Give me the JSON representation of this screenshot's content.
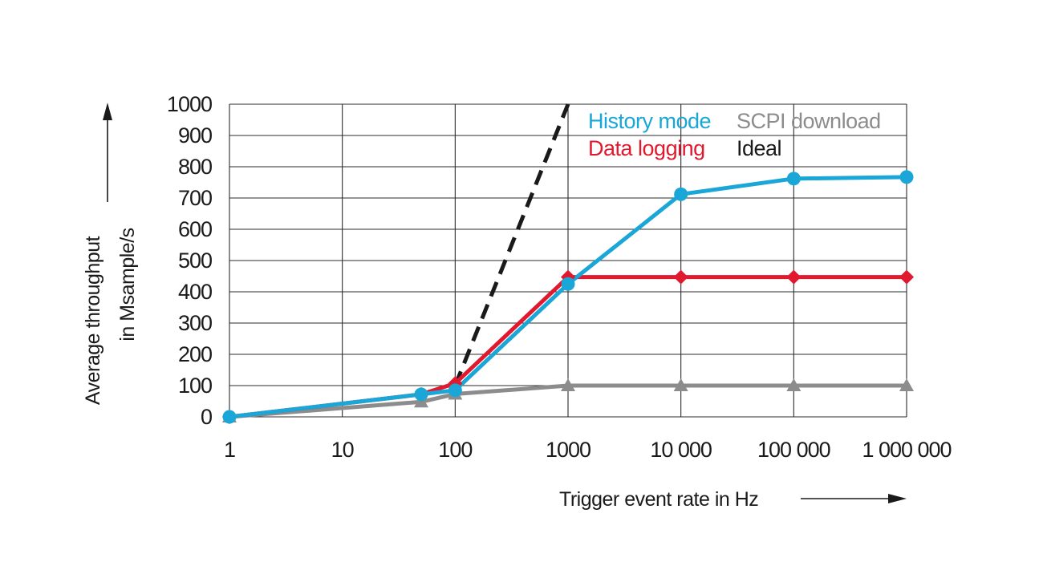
{
  "chart_data": {
    "type": "line",
    "title": "",
    "xlabel": "Trigger event rate in Hz",
    "ylabel_lines": [
      "Average throughput",
      "in Msample/s"
    ],
    "x_scale": "log",
    "xlim": [
      1,
      1000000
    ],
    "ylim": [
      0,
      1000
    ],
    "x_ticks": [
      1,
      10,
      100,
      1000,
      10000,
      100000,
      1000000
    ],
    "x_tick_labels": [
      "1",
      "10",
      "100",
      "1000",
      "10 000",
      "100 000",
      "1 000 000"
    ],
    "y_ticks": [
      0,
      100,
      200,
      300,
      400,
      500,
      600,
      700,
      800,
      900,
      1000
    ],
    "y_tick_labels": [
      "0",
      "100",
      "200",
      "300",
      "400",
      "500",
      "600",
      "700",
      "800",
      "900",
      "1000"
    ],
    "grid": true,
    "legend_position": "top-right",
    "series": [
      {
        "name": "History mode",
        "color": "#1aa6d6",
        "marker": "circle",
        "line_style": "solid",
        "x": [
          1,
          50,
          100,
          1000,
          10000,
          100000,
          1000000
        ],
        "y": [
          0,
          72,
          85,
          425,
          712,
          762,
          767
        ]
      },
      {
        "name": "Data logging",
        "color": "#e1192f",
        "marker": "diamond",
        "line_style": "solid",
        "x": [
          1,
          50,
          100,
          1000,
          10000,
          100000,
          1000000
        ],
        "y": [
          0,
          72,
          107,
          447,
          447,
          447,
          447
        ]
      },
      {
        "name": "SCPI download",
        "color": "#8c8c8c",
        "marker": "triangle",
        "line_style": "solid",
        "x": [
          1,
          50,
          100,
          1000,
          10000,
          100000,
          1000000
        ],
        "y": [
          0,
          48,
          73,
          100,
          100,
          100,
          100
        ]
      },
      {
        "name": "Ideal",
        "color": "#1a1a1a",
        "marker": "none",
        "line_style": "dashed",
        "x": [
          100,
          1000
        ],
        "y": [
          100,
          1000
        ]
      }
    ]
  }
}
